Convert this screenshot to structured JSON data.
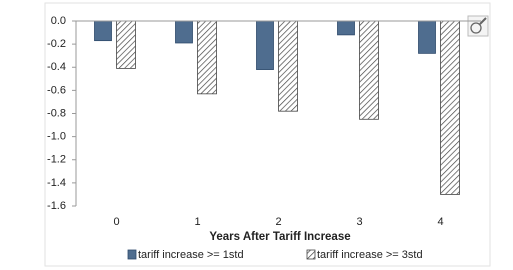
{
  "chart_data": {
    "type": "bar",
    "x_label": "Years After Tariff Increase",
    "categories": [
      "0",
      "1",
      "2",
      "3",
      "4"
    ],
    "series": [
      {
        "name": "tariff increase >= 1std",
        "color": "#4f6d8f",
        "values": [
          -0.17,
          -0.19,
          -0.42,
          -0.12,
          -0.28
        ]
      },
      {
        "name": "tariff increase >= 3std",
        "color": "#444444",
        "hatch": true,
        "values": [
          -0.41,
          -0.63,
          -0.78,
          -0.85,
          -1.5
        ]
      }
    ],
    "ylim": [
      -1.6,
      0
    ],
    "yticks": [
      {
        "value": 0,
        "label": "0.0"
      },
      -0.2,
      -0.4,
      -0.6,
      -0.8,
      {
        "value": -1,
        "label": "-1.0"
      },
      -1.2,
      -1.4,
      -1.6
    ],
    "grid": false,
    "legend": "bottom"
  }
}
